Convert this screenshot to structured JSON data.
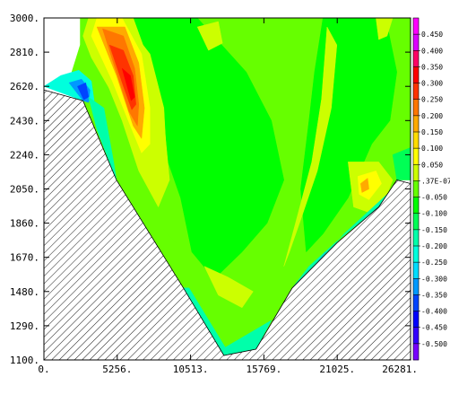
{
  "chart_data": {
    "type": "heatmap",
    "title": "",
    "xlabel": "",
    "ylabel": "",
    "xlim": [
      0,
      26281
    ],
    "ylim": [
      1100,
      3000
    ],
    "x_tick_labels": [
      "0.",
      "5256.",
      "10513.",
      "15769.",
      "21025.",
      "26281."
    ],
    "x_tick_values": [
      0,
      5256,
      10513,
      15769,
      21025,
      26281
    ],
    "y_tick_labels": [
      "3000.",
      "2810.",
      "2620.",
      "2430.",
      "2240.",
      "2050.",
      "1860.",
      "1670.",
      "1480.",
      "1290.",
      "1100."
    ],
    "y_tick_values": [
      3000,
      2810,
      2620,
      2430,
      2240,
      2050,
      1860,
      1670,
      1480,
      1290,
      1100
    ],
    "colorbar": {
      "labels": [
        "0.450",
        "0.400",
        "0.350",
        "0.300",
        "0.250",
        "0.200",
        "0.150",
        "0.100",
        "0.050",
        ".37E-07",
        "-0.050",
        "-0.100",
        "-0.150",
        "-0.200",
        "-0.250",
        "-0.300",
        "-0.350",
        "-0.400",
        "-0.450",
        "-0.500"
      ],
      "colors": [
        "#ff00ff",
        "#dd00ff",
        "#ff0066",
        "#ff0000",
        "#ff3300",
        "#ff7700",
        "#ffaa00",
        "#ffdd00",
        "#ffff00",
        "#ccff00",
        "#66ff00",
        "#00ff00",
        "#00ff55",
        "#00ffaa",
        "#00ffdd",
        "#00ddff",
        "#0099ff",
        "#0044ff",
        "#0000ff",
        "#3300ff",
        "#7700ff"
      ]
    },
    "topography_masked": true,
    "bottom_profile": [
      [
        0,
        2600
      ],
      [
        2800,
        2540
      ],
      [
        5200,
        2100
      ],
      [
        10000,
        1500
      ],
      [
        12900,
        1125
      ],
      [
        15200,
        1160
      ],
      [
        17800,
        1500
      ],
      [
        21000,
        1750
      ],
      [
        24000,
        1950
      ],
      [
        25300,
        2100
      ],
      [
        26281,
        2080
      ]
    ],
    "contour_patches": [
      {
        "name": "light-green-base",
        "color": "#66ff00",
        "points": [
          [
            2600,
            3000
          ],
          [
            26281,
            3000
          ],
          [
            26281,
            2100
          ],
          [
            25300,
            2100
          ],
          [
            24000,
            1950
          ],
          [
            21000,
            1750
          ],
          [
            17800,
            1500
          ],
          [
            15200,
            1160
          ],
          [
            12900,
            1125
          ],
          [
            10000,
            1500
          ],
          [
            5200,
            2100
          ],
          [
            2800,
            2540
          ],
          [
            2000,
            2700
          ],
          [
            2600,
            2850
          ]
        ]
      },
      {
        "name": "green-band-center",
        "color": "#00ff00",
        "points": [
          [
            6200,
            3000
          ],
          [
            11000,
            3000
          ],
          [
            14500,
            2700
          ],
          [
            16300,
            2430
          ],
          [
            17200,
            2100
          ],
          [
            16000,
            1860
          ],
          [
            14200,
            1700
          ],
          [
            12200,
            1550
          ],
          [
            10600,
            1700
          ],
          [
            9800,
            2000
          ],
          [
            8000,
            2400
          ]
        ]
      },
      {
        "name": "green-band-right",
        "color": "#00ff00",
        "points": [
          [
            20000,
            3000
          ],
          [
            24500,
            3000
          ],
          [
            25300,
            2700
          ],
          [
            24800,
            2430
          ],
          [
            23500,
            2300
          ],
          [
            21800,
            2000
          ],
          [
            20000,
            1800
          ],
          [
            18800,
            1700
          ],
          [
            18400,
            2050
          ],
          [
            19000,
            2430
          ],
          [
            19400,
            2700
          ]
        ]
      },
      {
        "name": "yellow-left-ridge",
        "color": "#ccff00",
        "points": [
          [
            3800,
            3000
          ],
          [
            6400,
            3000
          ],
          [
            7800,
            2700
          ],
          [
            8600,
            2430
          ],
          [
            9000,
            2100
          ],
          [
            8200,
            1950
          ],
          [
            6800,
            2150
          ],
          [
            5600,
            2430
          ],
          [
            4200,
            2700
          ]
        ]
      },
      {
        "name": "yellow-right-ridge",
        "color": "#ccff00",
        "points": [
          [
            20300,
            2950
          ],
          [
            21000,
            2850
          ],
          [
            20600,
            2500
          ],
          [
            19600,
            2150
          ],
          [
            18500,
            1900
          ],
          [
            17600,
            1700
          ],
          [
            17200,
            1620
          ],
          [
            18000,
            1850
          ],
          [
            19200,
            2200
          ],
          [
            19900,
            2550
          ]
        ]
      },
      {
        "name": "yellow-top-right",
        "color": "#ccff00",
        "points": [
          [
            23800,
            3000
          ],
          [
            25000,
            3000
          ],
          [
            24600,
            2900
          ],
          [
            24000,
            2880
          ]
        ]
      },
      {
        "name": "yellow-top-patch",
        "color": "#ccff00",
        "points": [
          [
            11000,
            2950
          ],
          [
            12500,
            2980
          ],
          [
            12800,
            2860
          ],
          [
            11800,
            2820
          ]
        ]
      },
      {
        "name": "yellow-bottom-center",
        "color": "#ccff00",
        "points": [
          [
            11500,
            1620
          ],
          [
            13200,
            1560
          ],
          [
            15000,
            1480
          ],
          [
            14200,
            1390
          ],
          [
            12500,
            1460
          ]
        ]
      },
      {
        "name": "lightgreen-lower-left",
        "color": "#66ff00",
        "points": [
          [
            7000,
            1950
          ],
          [
            9500,
            1750
          ],
          [
            10500,
            1620
          ],
          [
            9500,
            1600
          ],
          [
            8000,
            1780
          ]
        ]
      },
      {
        "name": "yellow-right-blob",
        "color": "#ccff00",
        "points": [
          [
            21800,
            2200
          ],
          [
            24000,
            2200
          ],
          [
            25000,
            2100
          ],
          [
            24000,
            1900
          ],
          [
            22200,
            1950
          ]
        ]
      },
      {
        "name": "yellow-blob-inner",
        "color": "#ffff00",
        "points": [
          [
            22500,
            2120
          ],
          [
            23800,
            2150
          ],
          [
            24200,
            2080
          ],
          [
            23300,
            1990
          ],
          [
            22600,
            2020
          ]
        ]
      },
      {
        "name": "orange-blob-inner",
        "color": "#ffaa00",
        "points": [
          [
            22700,
            2080
          ],
          [
            23200,
            2110
          ],
          [
            23300,
            2050
          ],
          [
            22800,
            2030
          ]
        ]
      },
      {
        "name": "yellow-max-outer",
        "color": "#ccff00",
        "points": [
          [
            2800,
            2900
          ],
          [
            3200,
            3000
          ],
          [
            5600,
            3000
          ],
          [
            7600,
            2800
          ],
          [
            8600,
            2500
          ],
          [
            8800,
            2200
          ],
          [
            8200,
            2050
          ],
          [
            7200,
            2200
          ],
          [
            6200,
            2400
          ],
          [
            4600,
            2620
          ],
          [
            3400,
            2780
          ]
        ]
      },
      {
        "name": "yellow-max",
        "color": "#ffff00",
        "points": [
          [
            3400,
            2900
          ],
          [
            3800,
            3000
          ],
          [
            5600,
            3000
          ],
          [
            7000,
            2800
          ],
          [
            7600,
            2500
          ],
          [
            7600,
            2300
          ],
          [
            7000,
            2250
          ],
          [
            6200,
            2400
          ],
          [
            4900,
            2650
          ]
        ]
      },
      {
        "name": "orange-max",
        "color": "#ffaa00",
        "points": [
          [
            3800,
            2950
          ],
          [
            5800,
            2950
          ],
          [
            6800,
            2750
          ],
          [
            7200,
            2500
          ],
          [
            7000,
            2330
          ],
          [
            6400,
            2400
          ],
          [
            5200,
            2680
          ]
        ]
      },
      {
        "name": "orange-max-inner",
        "color": "#ff7700",
        "points": [
          [
            4200,
            2940
          ],
          [
            5700,
            2900
          ],
          [
            6500,
            2720
          ],
          [
            6800,
            2520
          ],
          [
            6700,
            2400
          ],
          [
            6100,
            2480
          ],
          [
            5100,
            2720
          ]
        ]
      },
      {
        "name": "red-max",
        "color": "#ff3300",
        "points": [
          [
            4700,
            2850
          ],
          [
            5700,
            2820
          ],
          [
            6400,
            2680
          ],
          [
            6600,
            2520
          ],
          [
            6300,
            2490
          ],
          [
            5700,
            2620
          ]
        ]
      },
      {
        "name": "red-core",
        "color": "#ff0000",
        "points": [
          [
            5600,
            2720
          ],
          [
            6200,
            2680
          ],
          [
            6500,
            2560
          ],
          [
            6250,
            2540
          ]
        ]
      },
      {
        "name": "cyan-left",
        "color": "#00ffdd",
        "points": [
          [
            0,
            2620
          ],
          [
            1200,
            2680
          ],
          [
            2500,
            2710
          ],
          [
            3400,
            2650
          ],
          [
            3600,
            2540
          ],
          [
            2800,
            2540
          ]
        ]
      },
      {
        "name": "blue-left",
        "color": "#0099ff",
        "points": [
          [
            1800,
            2640
          ],
          [
            2700,
            2660
          ],
          [
            3300,
            2600
          ],
          [
            3200,
            2530
          ],
          [
            2800,
            2540
          ]
        ]
      },
      {
        "name": "navy-left",
        "color": "#0044ff",
        "points": [
          [
            2400,
            2620
          ],
          [
            3000,
            2640
          ],
          [
            3200,
            2560
          ],
          [
            2850,
            2545
          ]
        ]
      },
      {
        "name": "cyan-left-slope",
        "color": "#00ffaa",
        "points": [
          [
            3200,
            2560
          ],
          [
            4300,
            2500
          ],
          [
            5000,
            2200
          ],
          [
            5200,
            2100
          ],
          [
            3800,
            2380
          ]
        ]
      },
      {
        "name": "cyan-right-slope",
        "color": "#00ffaa",
        "points": [
          [
            17800,
            1500
          ],
          [
            19000,
            1620
          ],
          [
            21000,
            1760
          ],
          [
            24000,
            1950
          ],
          [
            24600,
            2020
          ],
          [
            21500,
            1800
          ],
          [
            19400,
            1610
          ]
        ]
      },
      {
        "name": "blue-right-slope",
        "color": "#0099ff",
        "points": [
          [
            17900,
            1500
          ],
          [
            18800,
            1560
          ],
          [
            20200,
            1700
          ],
          [
            19200,
            1600
          ],
          [
            18300,
            1520
          ]
        ]
      },
      {
        "name": "navy-right-slope",
        "color": "#0044ff",
        "points": [
          [
            18000,
            1500
          ],
          [
            18600,
            1540
          ],
          [
            19400,
            1620
          ],
          [
            18500,
            1525
          ]
        ]
      },
      {
        "name": "cyan-bottom",
        "color": "#00ffaa",
        "points": [
          [
            10000,
            1500
          ],
          [
            12900,
            1125
          ],
          [
            15200,
            1160
          ],
          [
            16300,
            1320
          ],
          [
            13000,
            1170
          ],
          [
            10400,
            1500
          ]
        ]
      },
      {
        "name": "lightcyan-right-top",
        "color": "#00ff55",
        "points": [
          [
            25000,
            2240
          ],
          [
            26281,
            2280
          ],
          [
            26281,
            2100
          ],
          [
            25300,
            2100
          ]
        ]
      }
    ]
  }
}
